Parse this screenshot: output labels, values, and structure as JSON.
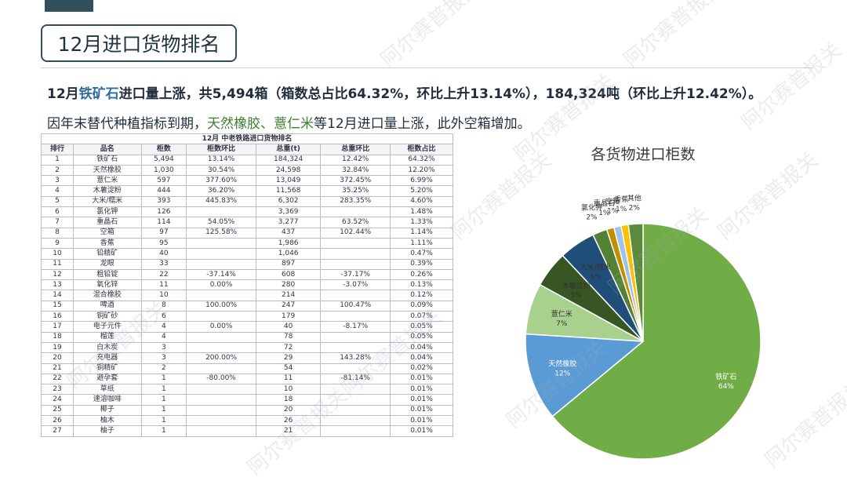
{
  "page_title": "12月进口货物排名",
  "summary": {
    "line1_prefix": "12月",
    "line1_highlight": "铁矿石",
    "line1_rest": "进口量上涨，共5,494箱（箱数总占比64.32%，环比上升13.14%），184,324吨（环比上升12.42%）。",
    "line2_prefix": "因年末替代种植指标到期，",
    "line2_highlight": "天然橡胶、薏仁米",
    "line2_rest": "等12月进口量上涨，此外空箱增加。"
  },
  "watermark": "阿尔赛普报关",
  "table": {
    "title": "12月 中老铁路进口货物排名",
    "headers": [
      "排行",
      "品名",
      "柜数",
      "柜数环比",
      "总重(t)",
      "总重环比",
      "柜数占比"
    ],
    "rows": [
      [
        "1",
        "铁矿石",
        "5,494",
        "13.14%",
        "184,324",
        "12.42%",
        "64.32%"
      ],
      [
        "2",
        "天然橡胶",
        "1,030",
        "30.54%",
        "24,598",
        "32.84%",
        "12.20%"
      ],
      [
        "3",
        "薏仁米",
        "597",
        "377.60%",
        "13,049",
        "372.45%",
        "6.99%"
      ],
      [
        "4",
        "木薯淀粉",
        "444",
        "36.20%",
        "11,568",
        "35.25%",
        "5.20%"
      ],
      [
        "5",
        "大米/糯米",
        "393",
        "445.83%",
        "6,302",
        "283.35%",
        "4.60%"
      ],
      [
        "6",
        "氯化钾",
        "126",
        "",
        "3,369",
        "",
        "1.48%"
      ],
      [
        "7",
        "重晶石",
        "114",
        "54.05%",
        "3,277",
        "63.52%",
        "1.33%"
      ],
      [
        "8",
        "空箱",
        "97",
        "125.58%",
        "437",
        "102.44%",
        "1.14%"
      ],
      [
        "9",
        "香蕉",
        "95",
        "",
        "1,986",
        "",
        "1.11%"
      ],
      [
        "10",
        "铅精矿",
        "40",
        "",
        "1,046",
        "",
        "0.47%"
      ],
      [
        "11",
        "龙眼",
        "33",
        "",
        "897",
        "",
        "0.39%"
      ],
      [
        "12",
        "粗铅锭",
        "22",
        "-37.14%",
        "608",
        "-37.17%",
        "0.26%"
      ],
      [
        "13",
        "氧化锌",
        "11",
        "0.00%",
        "280",
        "-3.07%",
        "0.13%"
      ],
      [
        "14",
        "混合橡胶",
        "10",
        "",
        "214",
        "",
        "0.12%"
      ],
      [
        "15",
        "啤酒",
        "8",
        "100.00%",
        "247",
        "100.47%",
        "0.09%"
      ],
      [
        "16",
        "铜矿砂",
        "6",
        "",
        "179",
        "",
        "0.07%"
      ],
      [
        "17",
        "电子元件",
        "4",
        "0.00%",
        "40",
        "-8.17%",
        "0.05%"
      ],
      [
        "18",
        "榴莲",
        "4",
        "",
        "78",
        "",
        "0.05%"
      ],
      [
        "19",
        "白木炭",
        "3",
        "",
        "72",
        "",
        "0.04%"
      ],
      [
        "20",
        "充电器",
        "3",
        "200.00%",
        "29",
        "143.28%",
        "0.04%"
      ],
      [
        "21",
        "铜精矿",
        "2",
        "",
        "54",
        "",
        "0.02%"
      ],
      [
        "22",
        "避孕套",
        "1",
        "-80.00%",
        "11",
        "-81.14%",
        "0.01%"
      ],
      [
        "23",
        "草纸",
        "1",
        "",
        "10",
        "",
        "0.01%"
      ],
      [
        "24",
        "速溶咖啡",
        "1",
        "",
        "18",
        "",
        "0.01%"
      ],
      [
        "25",
        "椰子",
        "1",
        "",
        "20",
        "",
        "0.01%"
      ],
      [
        "26",
        "柚木",
        "1",
        "",
        "26",
        "",
        "0.01%"
      ],
      [
        "27",
        "柚子",
        "1",
        "",
        "21",
        "",
        "0.01%"
      ]
    ]
  },
  "chart_data": {
    "type": "pie",
    "title": "各货物进口柜数",
    "slices": [
      {
        "name": "铁矿石",
        "value": 64,
        "label": "64%",
        "color": "#70ad47"
      },
      {
        "name": "天然橡胶",
        "value": 12,
        "label": "12%",
        "color": "#5b9bd5"
      },
      {
        "name": "薏仁米",
        "value": 7,
        "label": "7%",
        "color": "#a9d18e"
      },
      {
        "name": "木薯淀粉",
        "value": 5,
        "label": "5%",
        "color": "#375623"
      },
      {
        "name": "大米/糯米",
        "value": 5,
        "label": "5%",
        "color": "#1f4e79"
      },
      {
        "name": "氯化钾",
        "value": 2,
        "label": "2%",
        "color": "#548235"
      },
      {
        "name": "重晶石",
        "value": 1,
        "label": "1%",
        "color": "#bf8f00"
      },
      {
        "name": "空箱",
        "value": 1,
        "label": "1%",
        "color": "#9dc3e6"
      },
      {
        "name": "香蕉",
        "value": 1,
        "label": "1%",
        "color": "#ffc000"
      },
      {
        "name": "其他",
        "value": 2,
        "label": "2%",
        "color": "#5a8a3a"
      }
    ]
  }
}
